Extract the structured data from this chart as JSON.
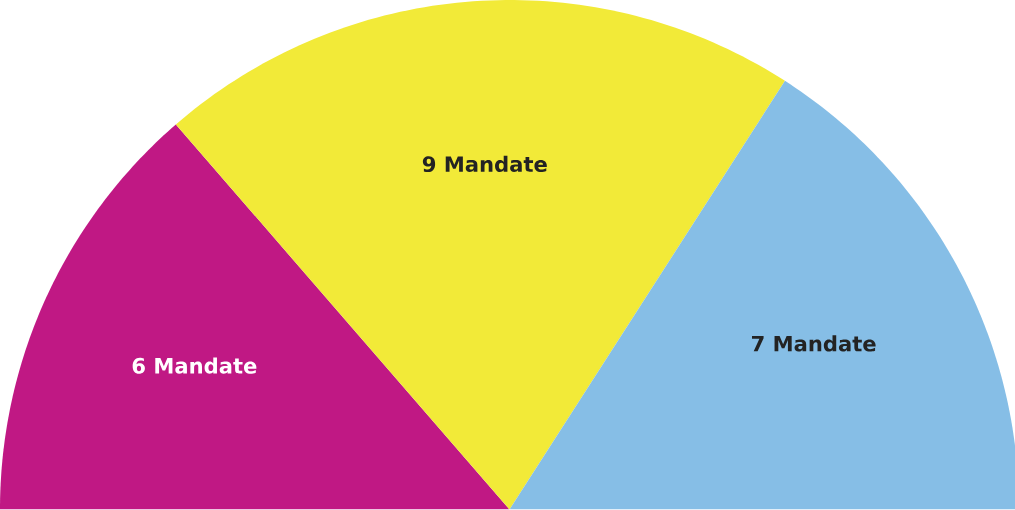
{
  "chart_data": {
    "type": "pie",
    "categories": [
      null,
      null,
      null
    ],
    "values": [
      6,
      9,
      7
    ],
    "colors": [
      "#c01884",
      "#f2ea38",
      "#86bee6"
    ],
    "value_labels": [
      "6 Mandate",
      "9 Mandate",
      "7 Mandate"
    ]
  }
}
